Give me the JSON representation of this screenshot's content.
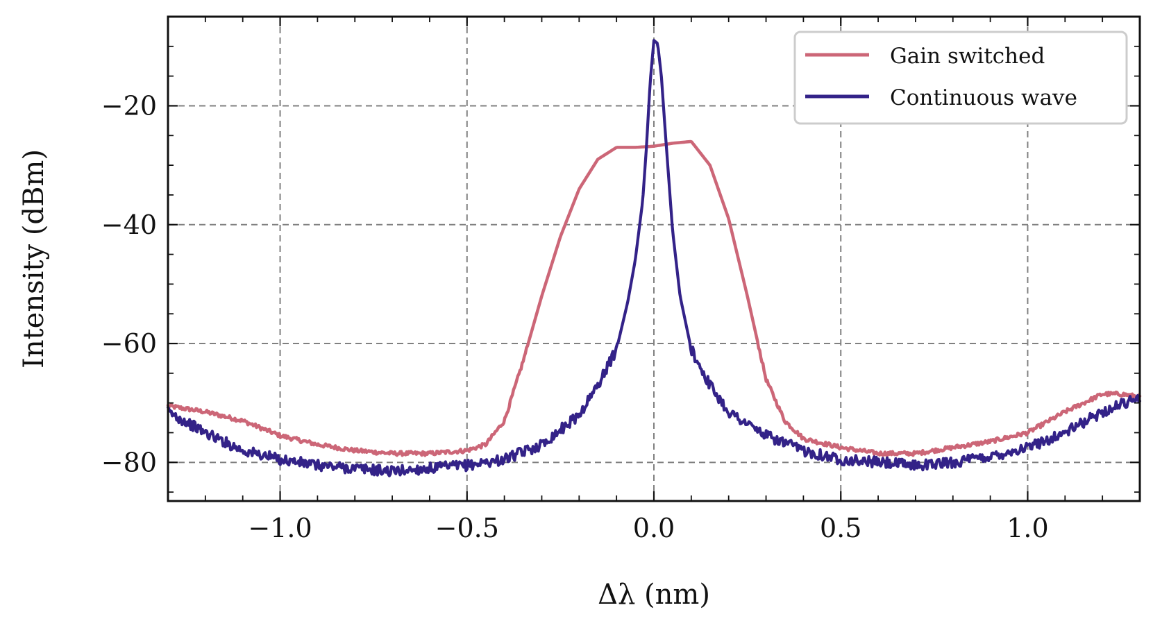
{
  "chart_data": {
    "type": "line",
    "title": "",
    "xlabel": "Δλ (nm)",
    "ylabel": "Intensity (dBm)",
    "xlim": [
      -1.3,
      1.3
    ],
    "ylim": [
      -86.5,
      -5
    ],
    "xticks": [
      -1.0,
      -0.5,
      0.0,
      0.5,
      1.0
    ],
    "xtick_labels": [
      "−1.0",
      "−0.5",
      "0.0",
      "0.5",
      "1.0"
    ],
    "yticks": [
      -80,
      -60,
      -40,
      -20
    ],
    "ytick_labels": [
      "−80",
      "−60",
      "−40",
      "−20"
    ],
    "grid": true,
    "legend_position": "top-right",
    "series": [
      {
        "name": "Gain switched",
        "color": "#cc6677",
        "x": [
          -1.3,
          -1.2,
          -1.1,
          -1.0,
          -0.9,
          -0.8,
          -0.7,
          -0.6,
          -0.5,
          -0.45,
          -0.4,
          -0.35,
          -0.3,
          -0.25,
          -0.2,
          -0.15,
          -0.1,
          -0.05,
          0.0,
          0.05,
          0.1,
          0.15,
          0.2,
          0.25,
          0.3,
          0.35,
          0.4,
          0.5,
          0.6,
          0.7,
          0.8,
          0.9,
          1.0,
          1.1,
          1.2,
          1.25,
          1.3
        ],
        "y": [
          -70.5,
          -71.5,
          -73,
          -75.5,
          -77,
          -78,
          -78.5,
          -78.5,
          -78,
          -77,
          -73,
          -63,
          -52,
          -42,
          -34,
          -29,
          -27,
          -27,
          -26.8,
          -26.3,
          -26,
          -30,
          -39,
          -52,
          -66,
          -73,
          -76,
          -77.5,
          -78.5,
          -78.5,
          -77.5,
          -76.5,
          -75,
          -71.5,
          -68.5,
          -68.5,
          -69
        ]
      },
      {
        "name": "Continuous wave",
        "color": "#332288",
        "x": [
          -1.3,
          -1.2,
          -1.1,
          -1.0,
          -0.9,
          -0.8,
          -0.7,
          -0.6,
          -0.5,
          -0.4,
          -0.3,
          -0.2,
          -0.15,
          -0.1,
          -0.07,
          -0.05,
          -0.03,
          -0.02,
          -0.01,
          0.0,
          0.01,
          0.02,
          0.03,
          0.05,
          0.07,
          0.1,
          0.15,
          0.2,
          0.3,
          0.4,
          0.5,
          0.6,
          0.7,
          0.8,
          0.9,
          1.0,
          1.1,
          1.2,
          1.3
        ],
        "y": [
          -71.5,
          -75,
          -78,
          -79.5,
          -80.5,
          -81,
          -81.5,
          -81,
          -80.5,
          -79.5,
          -77,
          -72,
          -67,
          -61,
          -53,
          -46,
          -36,
          -27,
          -16,
          -9,
          -9.5,
          -15,
          -24,
          -41,
          -52,
          -61,
          -67,
          -71.5,
          -75.5,
          -78,
          -79.5,
          -80,
          -80.5,
          -80,
          -79,
          -77.5,
          -75,
          -71.5,
          -69
        ]
      }
    ]
  }
}
